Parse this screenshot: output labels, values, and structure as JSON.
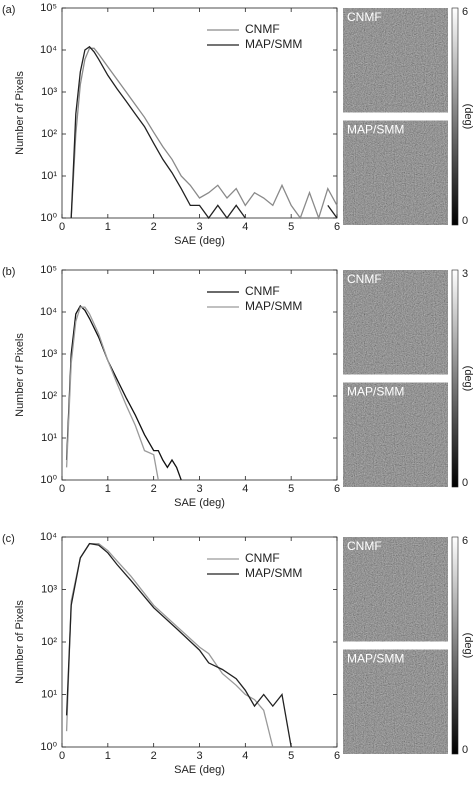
{
  "chart_data": [
    {
      "type": "line",
      "panel_label": "(a)",
      "xlabel": "SAE (deg)",
      "ylabel": "Number of Pixels",
      "log_y": true,
      "legend": "upper right",
      "xlim": [
        0,
        6
      ],
      "ylim": [
        1,
        100000
      ],
      "xticks": [
        0,
        1,
        2,
        3,
        4,
        5,
        6
      ],
      "yticks": [
        {
          "value": 1,
          "label": "10⁰"
        },
        {
          "value": 10,
          "label": "10¹"
        },
        {
          "value": 100,
          "label": "10²"
        },
        {
          "value": 1000,
          "label": "10³"
        },
        {
          "value": 10000,
          "label": "10⁴"
        },
        {
          "value": 100000,
          "label": "10⁵"
        }
      ],
      "x": [
        0.2,
        0.3,
        0.4,
        0.5,
        0.6,
        0.7,
        0.8,
        1.0,
        1.2,
        1.4,
        1.6,
        1.8,
        2.0,
        2.2,
        2.4,
        2.6,
        2.8,
        3.0,
        3.2,
        3.4,
        3.6,
        3.8,
        4.0,
        4.2,
        4.4,
        4.6,
        4.8,
        5.0,
        5.2,
        5.4,
        5.6,
        5.8,
        6.0
      ],
      "series": [
        {
          "name": "CNMF",
          "color": "#8a8a8a",
          "values": [
            1,
            100,
            1500,
            6000,
            11000,
            11000,
            8000,
            4000,
            2000,
            1000,
            500,
            250,
            110,
            50,
            25,
            10,
            6,
            3,
            4,
            6,
            3,
            5,
            2,
            4,
            3,
            2,
            6,
            2,
            1,
            4,
            1,
            5,
            2
          ]
        },
        {
          "name": "MAP/SMM",
          "color": "#222222",
          "values": [
            1,
            300,
            3000,
            10000,
            12000,
            9000,
            6000,
            2500,
            1200,
            600,
            300,
            150,
            60,
            25,
            12,
            5,
            2,
            2,
            1,
            2,
            1,
            2,
            1,
            null,
            null,
            null,
            null,
            null,
            null,
            null,
            null,
            2,
            1
          ]
        }
      ],
      "images": [
        "CNMF",
        "MAP/SMM"
      ],
      "colorbar_ticks": [
        0,
        6
      ],
      "colorbar_label": "(deg)"
    },
    {
      "type": "line",
      "panel_label": "(b)",
      "xlabel": "SAE (deg)",
      "ylabel": "Number of Pixels",
      "log_y": true,
      "legend": "upper right",
      "xlim": [
        0,
        6
      ],
      "ylim": [
        1,
        100000
      ],
      "xticks": [
        0,
        1,
        2,
        3,
        4,
        5,
        6
      ],
      "yticks": [
        {
          "value": 1,
          "label": "10⁰"
        },
        {
          "value": 10,
          "label": "10¹"
        },
        {
          "value": 100,
          "label": "10²"
        },
        {
          "value": 1000,
          "label": "10³"
        },
        {
          "value": 10000,
          "label": "10⁴"
        },
        {
          "value": 100000,
          "label": "10⁵"
        }
      ],
      "x": [
        0.1,
        0.2,
        0.3,
        0.4,
        0.5,
        0.6,
        0.8,
        1.0,
        1.2,
        1.4,
        1.6,
        1.8,
        2.0,
        2.1,
        2.2,
        2.3,
        2.4,
        2.5,
        2.6
      ],
      "series": [
        {
          "name": "CNMF",
          "color": "#111111",
          "values": [
            3,
            1000,
            9000,
            14000,
            11000,
            7000,
            2500,
            700,
            250,
            90,
            35,
            12,
            5,
            5,
            3,
            2,
            3,
            2,
            1
          ]
        },
        {
          "name": "MAP/SMM",
          "color": "#9a9a9a",
          "values": [
            2,
            600,
            6000,
            13000,
            13000,
            9000,
            3000,
            700,
            200,
            60,
            20,
            5,
            4,
            1,
            null,
            null,
            null,
            null,
            null
          ]
        }
      ],
      "images": [
        "CNMF",
        "MAP/SMM"
      ],
      "colorbar_ticks": [
        0,
        3
      ],
      "colorbar_label": "(deg)"
    },
    {
      "type": "line",
      "panel_label": "(c)",
      "xlabel": "SAE (deg)",
      "ylabel": "Number of Pixels",
      "log_y": true,
      "legend": "upper right",
      "xlim": [
        0,
        6
      ],
      "ylim": [
        1,
        10000
      ],
      "xticks": [
        0,
        1,
        2,
        3,
        4,
        5,
        6
      ],
      "yticks": [
        {
          "value": 1,
          "label": "10⁰"
        },
        {
          "value": 10,
          "label": "10¹"
        },
        {
          "value": 100,
          "label": "10²"
        },
        {
          "value": 1000,
          "label": "10³"
        },
        {
          "value": 10000,
          "label": "10⁴"
        }
      ],
      "x": [
        0.1,
        0.2,
        0.4,
        0.6,
        0.8,
        1.0,
        1.2,
        1.5,
        2.0,
        2.5,
        3.0,
        3.2,
        3.5,
        3.8,
        4.0,
        4.2,
        4.4,
        4.6,
        4.8,
        5.0
      ],
      "series": [
        {
          "name": "CNMF",
          "color": "#9a9a9a",
          "values": [
            2,
            600,
            4000,
            7500,
            7500,
            5500,
            3500,
            1800,
            500,
            200,
            80,
            60,
            25,
            15,
            10,
            8,
            5,
            1,
            null,
            null
          ]
        },
        {
          "name": "MAP/SMM",
          "color": "#222222",
          "values": [
            4,
            500,
            4000,
            7500,
            7000,
            5000,
            3000,
            1500,
            450,
            180,
            70,
            40,
            30,
            20,
            12,
            6,
            10,
            6,
            10,
            1
          ]
        }
      ],
      "images": [
        "CNMF",
        "MAP/SMM"
      ],
      "colorbar_ticks": [
        0,
        6
      ],
      "colorbar_label": "(deg)"
    }
  ]
}
